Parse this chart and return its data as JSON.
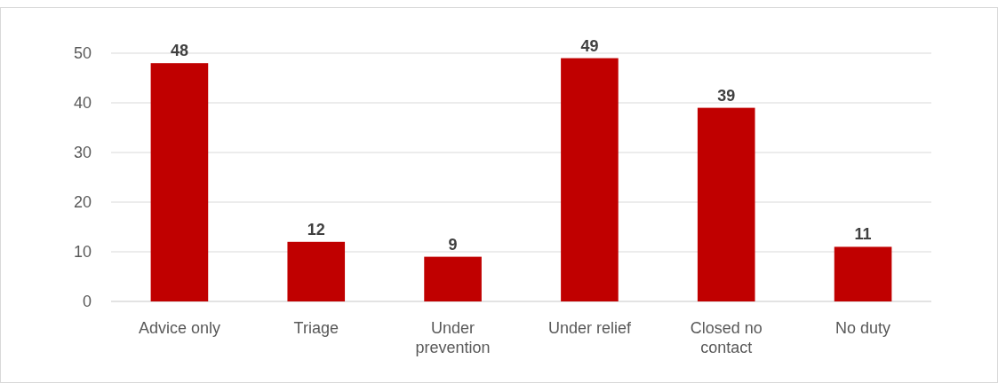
{
  "chart_data": {
    "type": "bar",
    "categories": [
      "Advice only",
      "Triage",
      "Under prevention",
      "Under relief",
      "Closed no contact",
      "No duty"
    ],
    "values": [
      48,
      12,
      9,
      49,
      39,
      11
    ],
    "color": "#c00000",
    "ylim": [
      0,
      50
    ],
    "yticks": [
      0,
      10,
      20,
      30,
      40,
      50
    ],
    "grid": "y",
    "data_labels": true
  }
}
